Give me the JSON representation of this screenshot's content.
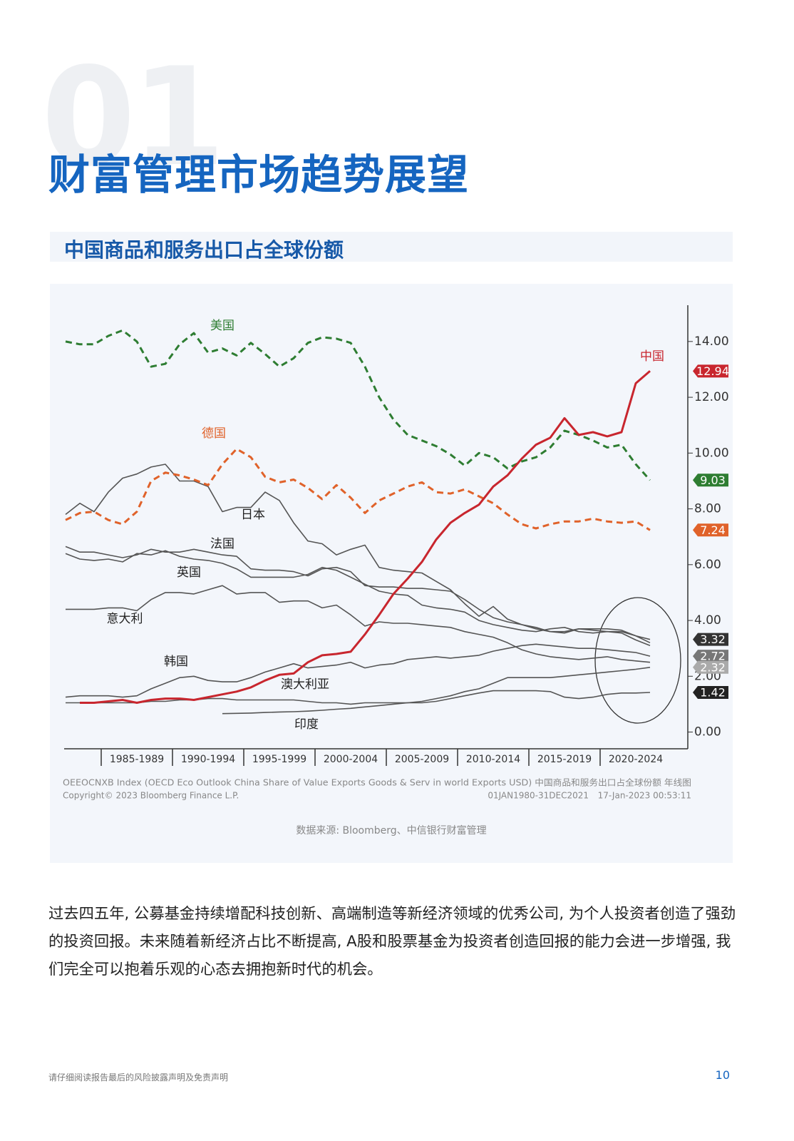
{
  "header": {
    "number": "01",
    "title": "财富管理市场趋势展望"
  },
  "section_title": "中国商品和服务出口占全球份额",
  "chart_data": {
    "type": "line",
    "x": [
      1980,
      1981,
      1982,
      1983,
      1984,
      1985,
      1986,
      1987,
      1988,
      1989,
      1990,
      1991,
      1992,
      1993,
      1994,
      1995,
      1996,
      1997,
      1998,
      1999,
      2000,
      2001,
      2002,
      2003,
      2004,
      2005,
      2006,
      2007,
      2008,
      2009,
      2010,
      2011,
      2012,
      2013,
      2014,
      2015,
      2016,
      2017,
      2018,
      2019,
      2020,
      2021
    ],
    "xlim": [
      1979.9,
      2023.65
    ],
    "xticks": [
      {
        "value": 1985,
        "label": "1985-1989"
      },
      {
        "value": 1990,
        "label": "1990-1994"
      },
      {
        "value": 1995,
        "label": "1995-1999"
      },
      {
        "value": 2000,
        "label": "2000-2004"
      },
      {
        "value": 2005,
        "label": "2005-2009"
      },
      {
        "value": 2010,
        "label": "2010-2014"
      },
      {
        "value": 2015,
        "label": "2015-2019"
      },
      {
        "value": 2020,
        "label": "2020-2024"
      }
    ],
    "ylim": [
      -0.6,
      15.3
    ],
    "yticks": [
      {
        "value": 0,
        "label": "0.00"
      },
      {
        "value": 2,
        "label": "2.00"
      },
      {
        "value": 4,
        "label": "4.00"
      },
      {
        "value": 6,
        "label": "6.00"
      },
      {
        "value": 8,
        "label": "8.00"
      },
      {
        "value": 10,
        "label": "10.00"
      },
      {
        "value": 12,
        "label": "12.00"
      },
      {
        "value": 14,
        "label": "14.00"
      }
    ],
    "series": [
      {
        "name": "中国",
        "color": "#c8262e",
        "end_label": "12.94",
        "values": [
          null,
          1.05,
          1.05,
          1.1,
          1.15,
          1.05,
          1.15,
          1.2,
          1.2,
          1.15,
          1.25,
          1.35,
          1.45,
          1.6,
          1.85,
          2.05,
          2.1,
          2.5,
          2.75,
          2.8,
          2.88,
          3.5,
          4.2,
          4.95,
          5.5,
          6.1,
          6.9,
          7.5,
          7.85,
          8.15,
          8.8,
          9.2,
          9.8,
          10.3,
          10.55,
          11.25,
          10.65,
          10.75,
          10.6,
          10.75,
          12.5,
          12.94
        ]
      },
      {
        "name": "美国",
        "color": "#2e7d32",
        "dash": true,
        "end_label": "9.03",
        "values": [
          14.0,
          13.9,
          13.9,
          14.2,
          14.4,
          14.0,
          13.1,
          13.2,
          13.9,
          14.3,
          13.6,
          13.75,
          13.5,
          13.95,
          13.55,
          13.1,
          13.4,
          13.95,
          14.15,
          14.1,
          13.95,
          13.1,
          12.0,
          11.2,
          10.65,
          10.45,
          10.25,
          9.95,
          9.55,
          10.0,
          9.85,
          9.45,
          9.7,
          9.85,
          10.2,
          10.8,
          10.65,
          10.45,
          10.2,
          10.3,
          9.6,
          9.03
        ]
      },
      {
        "name": "德国",
        "color": "#e0622a",
        "dash": true,
        "end_label": "7.24",
        "values": [
          7.6,
          7.85,
          7.9,
          7.6,
          7.45,
          7.9,
          9.0,
          9.3,
          9.2,
          9.05,
          8.85,
          9.6,
          10.15,
          9.85,
          9.15,
          8.95,
          9.05,
          8.75,
          8.35,
          8.85,
          8.4,
          7.85,
          8.3,
          8.55,
          8.8,
          8.95,
          8.6,
          8.55,
          8.7,
          8.45,
          8.2,
          7.8,
          7.45,
          7.3,
          7.45,
          7.55,
          7.55,
          7.65,
          7.55,
          7.5,
          7.55,
          7.24
        ]
      },
      {
        "name": "日本",
        "color": "#555555",
        "end_label": "3.32",
        "tag": "#333333",
        "values": [
          7.8,
          8.2,
          7.9,
          8.6,
          9.1,
          9.25,
          9.5,
          9.6,
          9.0,
          9.0,
          8.8,
          7.9,
          8.05,
          8.05,
          8.6,
          8.3,
          7.5,
          6.85,
          6.75,
          6.35,
          6.55,
          6.7,
          5.9,
          5.8,
          5.75,
          5.7,
          5.4,
          5.1,
          4.6,
          4.15,
          4.5,
          4.05,
          3.85,
          3.75,
          3.6,
          3.55,
          3.7,
          3.65,
          3.6,
          3.6,
          3.45,
          3.32
        ]
      },
      {
        "name": "法国",
        "color": "#555555",
        "values": [
          6.65,
          6.45,
          6.45,
          6.35,
          6.25,
          6.35,
          6.55,
          6.45,
          6.45,
          6.55,
          6.45,
          6.35,
          6.3,
          5.85,
          5.8,
          5.8,
          5.75,
          5.6,
          5.85,
          5.9,
          5.75,
          5.25,
          5.2,
          5.2,
          5.15,
          5.15,
          5.1,
          5.05,
          4.75,
          4.4,
          4.1,
          3.95,
          3.85,
          3.7,
          3.6,
          3.6,
          3.7,
          3.7,
          3.7,
          3.65,
          3.45,
          3.2
        ]
      },
      {
        "name": "英国",
        "color": "#555555",
        "values": [
          6.4,
          6.2,
          6.15,
          6.2,
          6.1,
          6.4,
          6.35,
          6.5,
          6.3,
          6.2,
          6.15,
          6.05,
          5.85,
          5.55,
          5.55,
          5.55,
          5.55,
          5.65,
          5.9,
          5.8,
          5.55,
          5.3,
          5.05,
          4.95,
          4.9,
          4.55,
          4.45,
          4.4,
          4.3,
          4.0,
          3.85,
          3.75,
          3.65,
          3.6,
          3.7,
          3.75,
          3.6,
          3.55,
          3.6,
          3.55,
          3.3,
          3.1
        ]
      },
      {
        "name": "意大利",
        "color": "#555555",
        "values": [
          4.4,
          4.4,
          4.4,
          4.45,
          4.45,
          4.35,
          4.75,
          5.0,
          5.0,
          4.95,
          5.1,
          5.25,
          4.95,
          5.0,
          5.0,
          4.65,
          4.7,
          4.7,
          4.45,
          4.55,
          4.2,
          3.8,
          3.95,
          3.9,
          3.9,
          3.85,
          3.8,
          3.75,
          3.6,
          3.5,
          3.4,
          3.2,
          2.95,
          2.8,
          2.7,
          2.65,
          2.6,
          2.65,
          2.7,
          2.6,
          2.55,
          2.5
        ]
      },
      {
        "name": "韩国",
        "color": "#555555",
        "end_label": "2.72",
        "tag": "#777777",
        "values": [
          1.25,
          1.3,
          1.3,
          1.3,
          1.25,
          1.3,
          1.55,
          1.75,
          1.95,
          2.0,
          1.85,
          1.8,
          1.8,
          1.95,
          2.15,
          2.3,
          2.45,
          2.3,
          2.35,
          2.4,
          2.5,
          2.3,
          2.4,
          2.45,
          2.6,
          2.65,
          2.7,
          2.65,
          2.7,
          2.75,
          2.9,
          3.0,
          3.1,
          3.15,
          3.1,
          3.05,
          3.0,
          3.0,
          2.95,
          2.9,
          2.85,
          2.72
        ]
      },
      {
        "name": "澳大利亚",
        "color": "#555555",
        "end_label": "1.42",
        "tag": "#222222",
        "values": [
          1.05,
          1.05,
          1.05,
          1.05,
          1.05,
          1.05,
          1.1,
          1.1,
          1.15,
          1.15,
          1.2,
          1.2,
          1.15,
          1.15,
          1.15,
          1.15,
          1.15,
          1.1,
          1.05,
          1.05,
          1.0,
          1.05,
          1.05,
          1.05,
          1.05,
          1.05,
          1.1,
          1.2,
          1.3,
          1.4,
          1.48,
          1.48,
          1.48,
          1.48,
          1.45,
          1.25,
          1.2,
          1.25,
          1.35,
          1.4,
          1.4,
          1.42
        ]
      },
      {
        "name": "印度",
        "color": "#555555",
        "end_label": "2.32",
        "tag": "#aaaaaa",
        "values": [
          null,
          null,
          null,
          null,
          null,
          null,
          null,
          null,
          null,
          null,
          null,
          0.66,
          0.67,
          0.68,
          0.7,
          0.72,
          0.73,
          0.75,
          0.78,
          0.82,
          0.85,
          0.9,
          0.95,
          1.0,
          1.05,
          1.1,
          1.2,
          1.3,
          1.45,
          1.55,
          1.75,
          1.95,
          1.95,
          1.95,
          1.95,
          2.0,
          2.05,
          2.1,
          2.15,
          2.2,
          2.25,
          2.32
        ]
      }
    ],
    "notes": [
      "OEEOCNXB Index (OECD Eco Outlook China Share of Value Exports Goods & Serv in world Exports USD) 中国商品和服务出口占全球份额 年线图",
      "Copyright© 2023 Bloomberg Finance L.P.",
      "01JAN1980-31DEC2021",
      "17-Jan-2023 00:53:11"
    ],
    "source": "数据来源: Bloomberg、中信银行财富管理"
  },
  "body_text": "过去四五年, 公募基金持续增配科技创新、高端制造等新经济领域的优秀公司, 为个人投资者创造了强劲的投资回报。未来随着新经济占比不断提高, A股和股票基金为投资者创造回报的能力会进一步增强, 我们完全可以抱着乐观的心态去拥抱新时代的机会。",
  "footer": {
    "disclaimer": "请仔细阅读报告最后的风险披露声明及免责声明",
    "page": 10
  }
}
